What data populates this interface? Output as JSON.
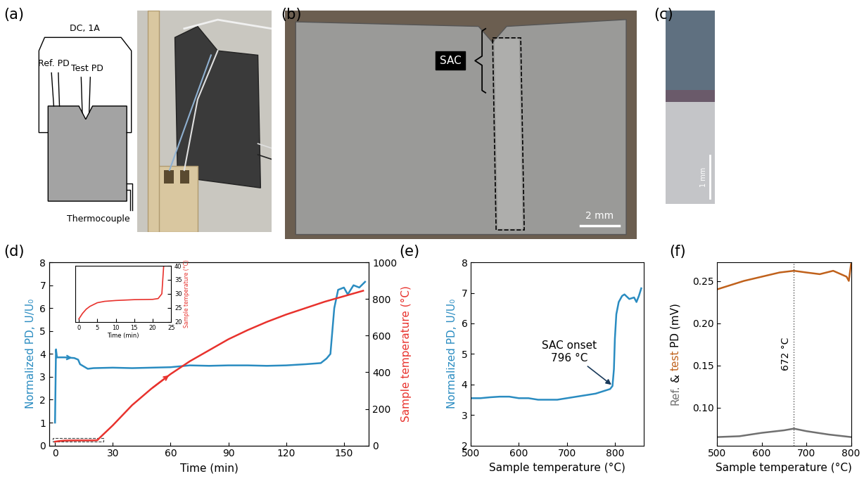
{
  "figure": {
    "panel_labels": [
      "(a)",
      "(b)",
      "(c)",
      "(d)",
      "(e)",
      "(f)"
    ],
    "schematic": {
      "labels": [
        "DC, 1A",
        "Ref. PD",
        "Test PD",
        "Thermocouple"
      ]
    },
    "micrograph_b": {
      "label": "SAC",
      "scale_bar": "2 mm"
    },
    "micrograph_c": {
      "scale_bar": "1 mm"
    }
  },
  "chart_data": [
    {
      "type": "line",
      "x_label": "Time (min)",
      "y_label": "Normalized PD, U/U₀",
      "y2_label": "Sample temperature (°C)",
      "xlim": [
        -3,
        163
      ],
      "xticks": [
        0,
        30,
        60,
        90,
        120,
        150
      ],
      "ylim": [
        0,
        8
      ],
      "yticks": [
        0,
        1,
        2,
        3,
        4,
        5,
        6,
        7,
        8
      ],
      "y2lim": [
        0,
        1000
      ],
      "y2ticks": [
        0,
        200,
        400,
        600,
        800,
        1000
      ],
      "series": [
        {
          "color": "#2a8cc1",
          "x": [
            0,
            0.5,
            1,
            5,
            10,
            12,
            13,
            15,
            17,
            20,
            30,
            40,
            50,
            60,
            70,
            80,
            90,
            100,
            110,
            120,
            130,
            138,
            141,
            143,
            144,
            145,
            147,
            150,
            152,
            155,
            158,
            161
          ],
          "values": [
            1.0,
            4.2,
            3.85,
            3.85,
            3.82,
            3.75,
            3.55,
            3.45,
            3.35,
            3.38,
            3.4,
            3.38,
            3.4,
            3.42,
            3.5,
            3.48,
            3.5,
            3.5,
            3.48,
            3.5,
            3.55,
            3.6,
            3.8,
            4.0,
            5.0,
            6.0,
            6.8,
            6.9,
            6.6,
            7.0,
            6.9,
            7.15
          ]
        },
        {
          "color": "#e8322d",
          "axis": "y2",
          "x": [
            0,
            2,
            5,
            10,
            20,
            22,
            23,
            25,
            30,
            40,
            50,
            60,
            70,
            80,
            90,
            100,
            110,
            120,
            130,
            140,
            150,
            160
          ],
          "values": [
            21,
            24,
            27,
            27.8,
            28,
            29,
            40,
            60,
            110,
            220,
            310,
            390,
            460,
            520,
            580,
            630,
            675,
            715,
            750,
            785,
            815,
            845
          ]
        }
      ]
    },
    {
      "type": "line",
      "x_label": "Time (min)",
      "y_label": "Sample temperature (°C)",
      "xlim": [
        -1,
        25
      ],
      "xticks": [
        0,
        5,
        10,
        15,
        20,
        25
      ],
      "ylim": [
        20,
        40
      ],
      "yticks": [
        20,
        25,
        30,
        35,
        40
      ],
      "series": [
        {
          "color": "#e8322d",
          "x": [
            0,
            1,
            2,
            3,
            5,
            7,
            10,
            15,
            20,
            21.5,
            22.5,
            23
          ],
          "values": [
            21,
            23,
            24.5,
            25.5,
            26.8,
            27.3,
            27.6,
            27.9,
            28,
            28.3,
            30,
            40
          ]
        }
      ]
    },
    {
      "type": "line",
      "x_label": "Sample temperature (°C)",
      "y_label": "Normalized PD, U/U₀",
      "xlim": [
        500,
        860
      ],
      "xticks": [
        500,
        600,
        700,
        800
      ],
      "ylim": [
        2,
        8
      ],
      "yticks": [
        2,
        3,
        4,
        5,
        6,
        7,
        8
      ],
      "series": [
        {
          "color": "#2a8cc1",
          "x": [
            500,
            520,
            540,
            560,
            580,
            600,
            620,
            640,
            660,
            680,
            700,
            720,
            740,
            760,
            780,
            790,
            795,
            798,
            800,
            803,
            808,
            815,
            820,
            830,
            840,
            845,
            850,
            855
          ],
          "values": [
            3.55,
            3.55,
            3.58,
            3.6,
            3.6,
            3.55,
            3.55,
            3.5,
            3.5,
            3.5,
            3.55,
            3.6,
            3.65,
            3.7,
            3.8,
            3.85,
            3.95,
            4.5,
            5.5,
            6.3,
            6.7,
            6.9,
            6.95,
            6.8,
            6.85,
            6.7,
            6.9,
            7.15
          ]
        }
      ],
      "annotations": [
        {
          "text": "SAC onset\n796 °C",
          "x": 796,
          "y": 3.95
        }
      ]
    },
    {
      "type": "line",
      "x_label": "Sample temperature (°C)",
      "y_label_parts": [
        {
          "text": "Ref.",
          "color": "#707070"
        },
        {
          "text": "&",
          "color": "#000000"
        },
        {
          "text": "test",
          "color": "#c0611b"
        },
        {
          "text": "PD (mV)",
          "color": "#000000"
        }
      ],
      "xlim": [
        500,
        800
      ],
      "xticks": [
        500,
        600,
        700,
        800
      ],
      "ylim": [
        0.055,
        0.272
      ],
      "yticks": [
        {
          "value": 0.1,
          "label": "0.10"
        },
        {
          "value": 0.15,
          "label": "0.15"
        },
        {
          "value": 0.2,
          "label": "0.20"
        },
        {
          "value": 0.25,
          "label": "0.25"
        }
      ],
      "series": [
        {
          "color": "#707070",
          "x": [
            500,
            550,
            600,
            650,
            672,
            700,
            750,
            800
          ],
          "values": [
            0.065,
            0.066,
            0.07,
            0.073,
            0.075,
            0.072,
            0.068,
            0.065
          ]
        },
        {
          "color": "#c0611b",
          "x": [
            500,
            530,
            560,
            600,
            640,
            672,
            700,
            730,
            760,
            790,
            795,
            800
          ],
          "values": [
            0.24,
            0.245,
            0.25,
            0.255,
            0.26,
            0.262,
            0.26,
            0.258,
            0.262,
            0.255,
            0.25,
            0.27
          ]
        }
      ],
      "annotations": [
        {
          "text": "672 °C",
          "x": 672
        }
      ]
    }
  ]
}
